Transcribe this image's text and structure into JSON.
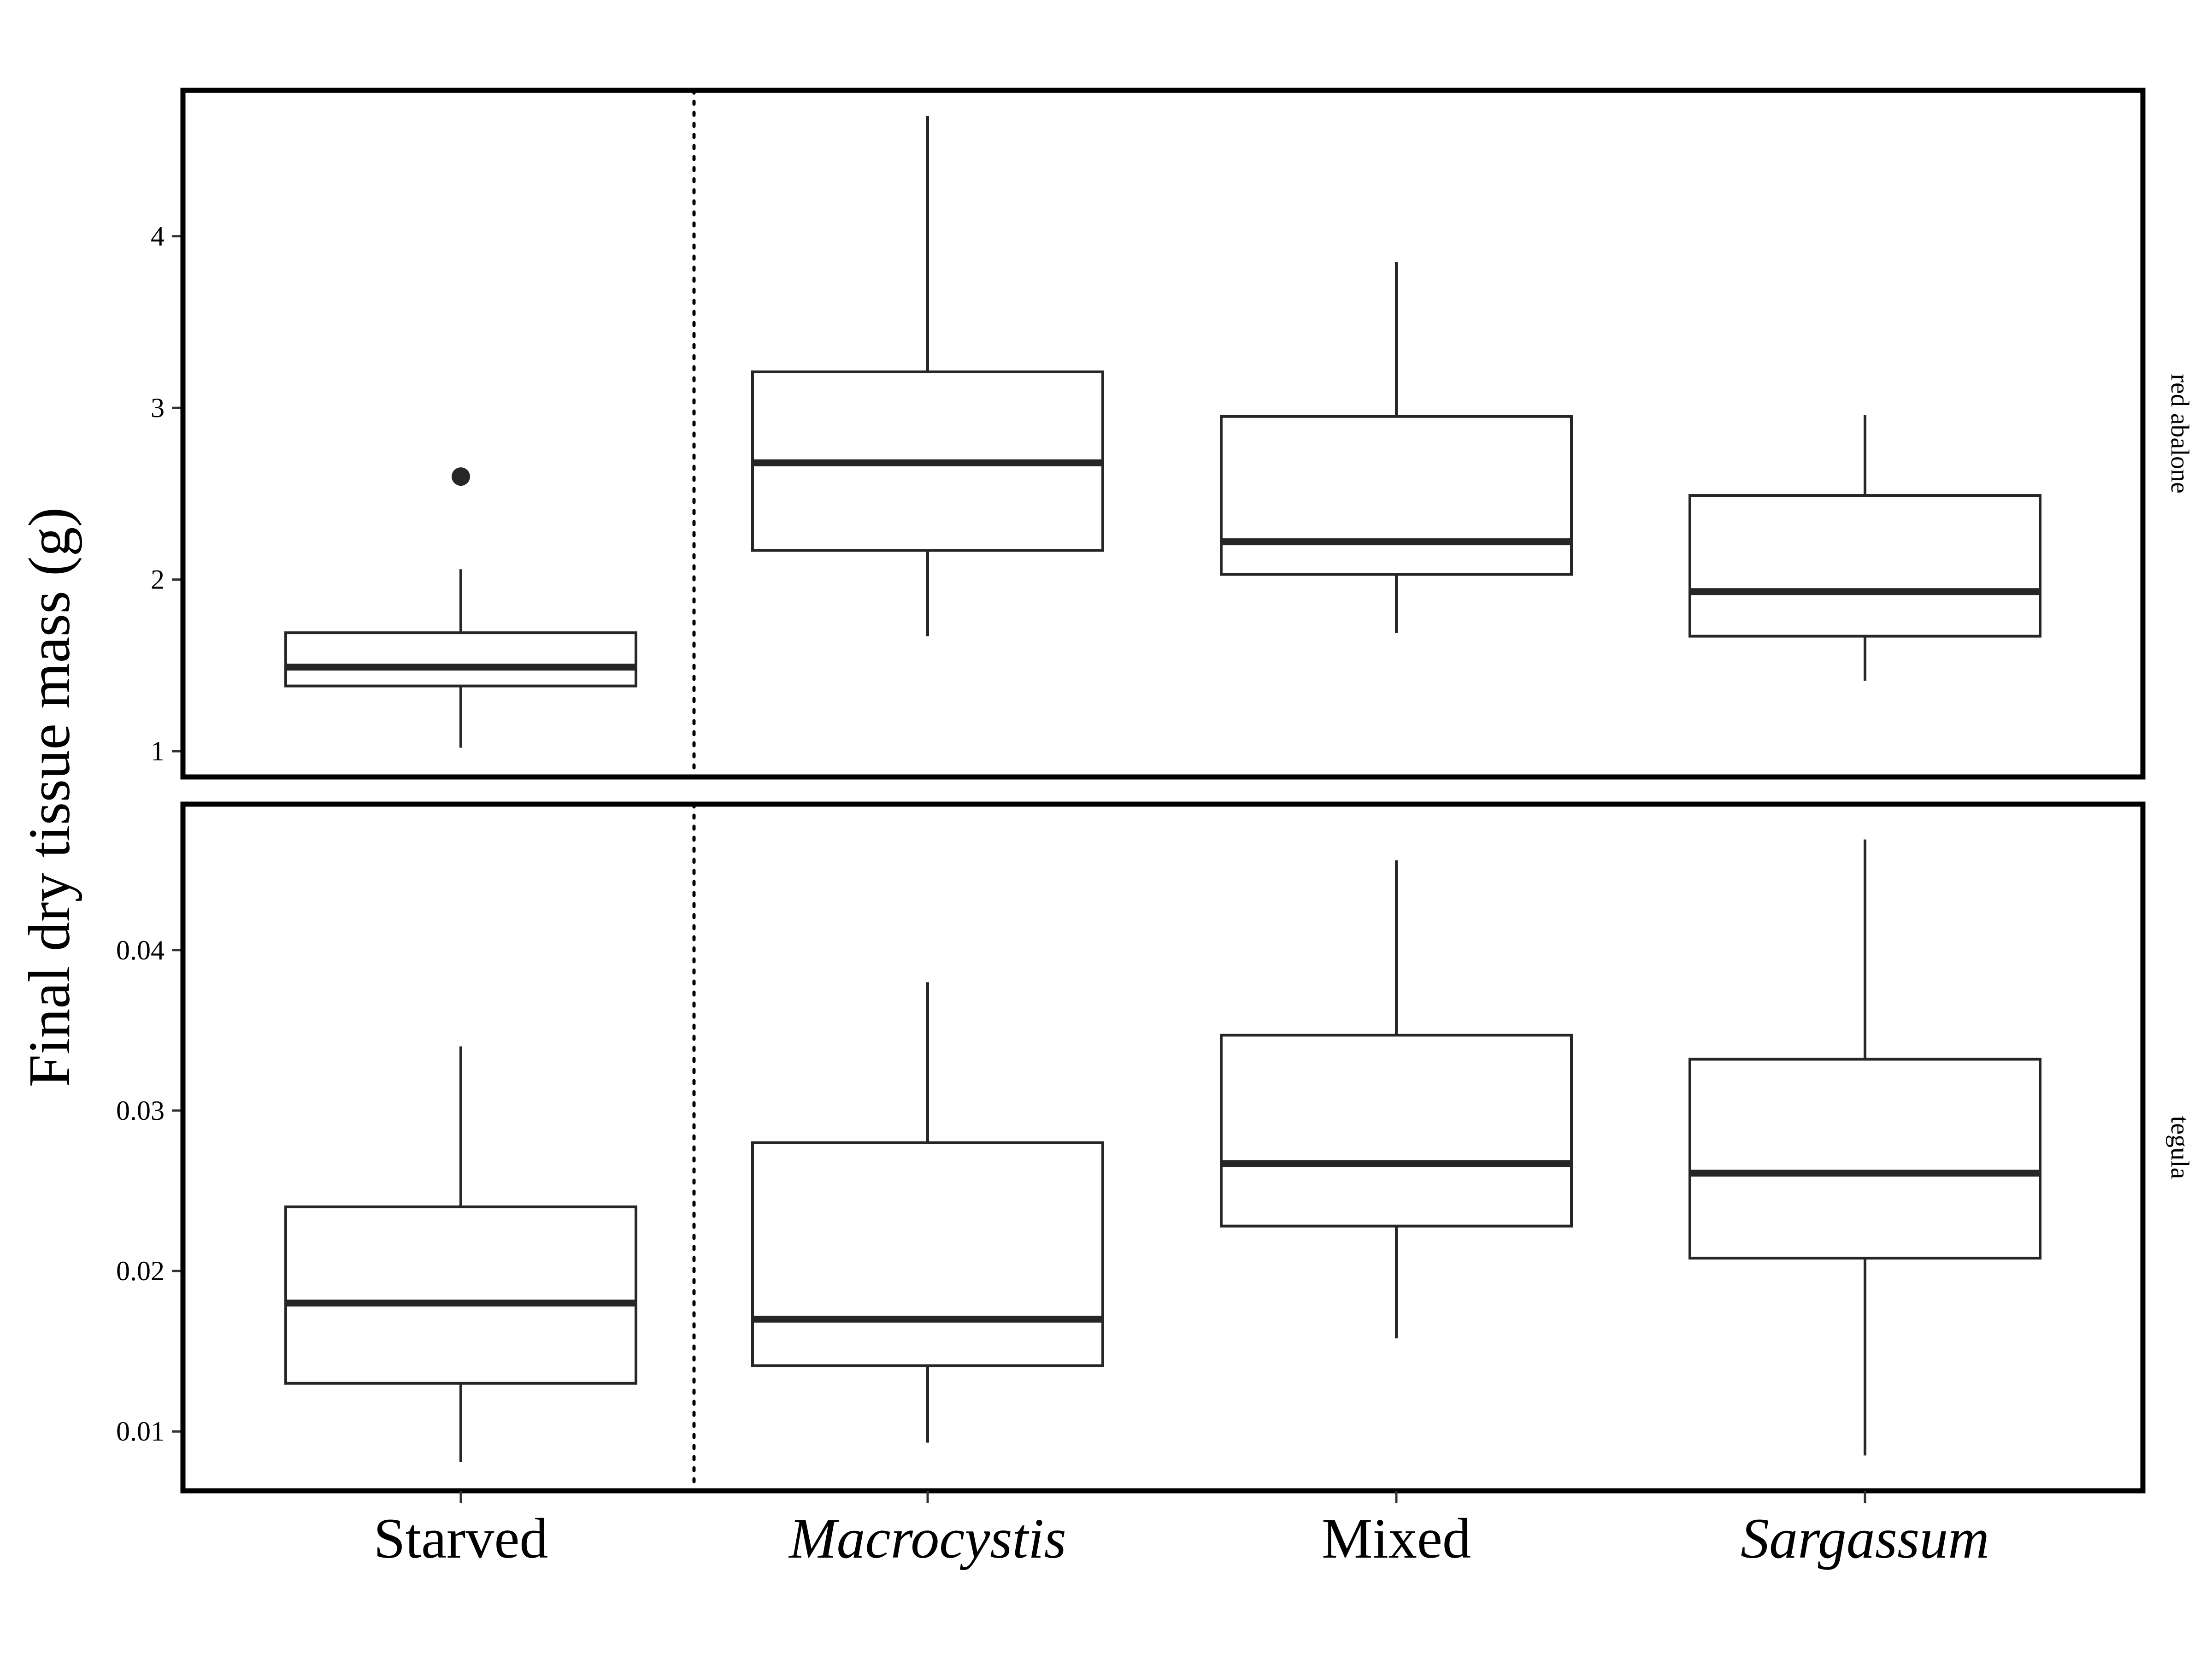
{
  "chart_data": {
    "type": "boxplot",
    "ylabel": "Final dry tissue mass (g)",
    "categories": [
      "Starved",
      "Macrocystis",
      "Mixed",
      "Sargassum"
    ],
    "italic_categories": [
      "Macrocystis",
      "Sargassum"
    ],
    "separator_after_category": "Starved",
    "separator_style": "dotted",
    "facets": [
      {
        "strip_label": "red abalone",
        "ylim": [
          0.85,
          4.85
        ],
        "yticks": [
          1,
          2,
          3,
          4
        ],
        "ytick_labels": [
          "1",
          "2",
          "3",
          "4"
        ],
        "boxes": [
          {
            "category": "Starved",
            "whisker_low": 1.02,
            "q1": 1.38,
            "median": 1.49,
            "q3": 1.69,
            "whisker_high": 2.06,
            "outliers": [
              2.6
            ]
          },
          {
            "category": "Macrocystis",
            "whisker_low": 1.67,
            "q1": 2.17,
            "median": 2.68,
            "q3": 3.21,
            "whisker_high": 4.7,
            "outliers": []
          },
          {
            "category": "Mixed",
            "whisker_low": 1.69,
            "q1": 2.03,
            "median": 2.22,
            "q3": 2.95,
            "whisker_high": 3.85,
            "outliers": []
          },
          {
            "category": "Sargassum",
            "whisker_low": 1.41,
            "q1": 1.67,
            "median": 1.93,
            "q3": 2.49,
            "whisker_high": 2.96,
            "outliers": []
          }
        ]
      },
      {
        "strip_label": "tegula",
        "ylim": [
          0.0063,
          0.0491
        ],
        "yticks": [
          0.01,
          0.02,
          0.03,
          0.04
        ],
        "ytick_labels": [
          "0.01",
          "0.02",
          "0.03",
          "0.04"
        ],
        "boxes": [
          {
            "category": "Starved",
            "whisker_low": 0.0081,
            "q1": 0.013,
            "median": 0.018,
            "q3": 0.024,
            "whisker_high": 0.034,
            "outliers": []
          },
          {
            "category": "Macrocystis",
            "whisker_low": 0.0093,
            "q1": 0.0141,
            "median": 0.017,
            "q3": 0.028,
            "whisker_high": 0.038,
            "outliers": []
          },
          {
            "category": "Mixed",
            "whisker_low": 0.0158,
            "q1": 0.0228,
            "median": 0.0267,
            "q3": 0.0347,
            "whisker_high": 0.0456,
            "outliers": []
          },
          {
            "category": "Sargassum",
            "whisker_low": 0.0085,
            "q1": 0.0208,
            "median": 0.0261,
            "q3": 0.0332,
            "whisker_high": 0.0469,
            "outliers": []
          }
        ]
      }
    ],
    "colors": {
      "line": "#262626",
      "panel_border": "#000000",
      "background": "#ffffff"
    }
  }
}
